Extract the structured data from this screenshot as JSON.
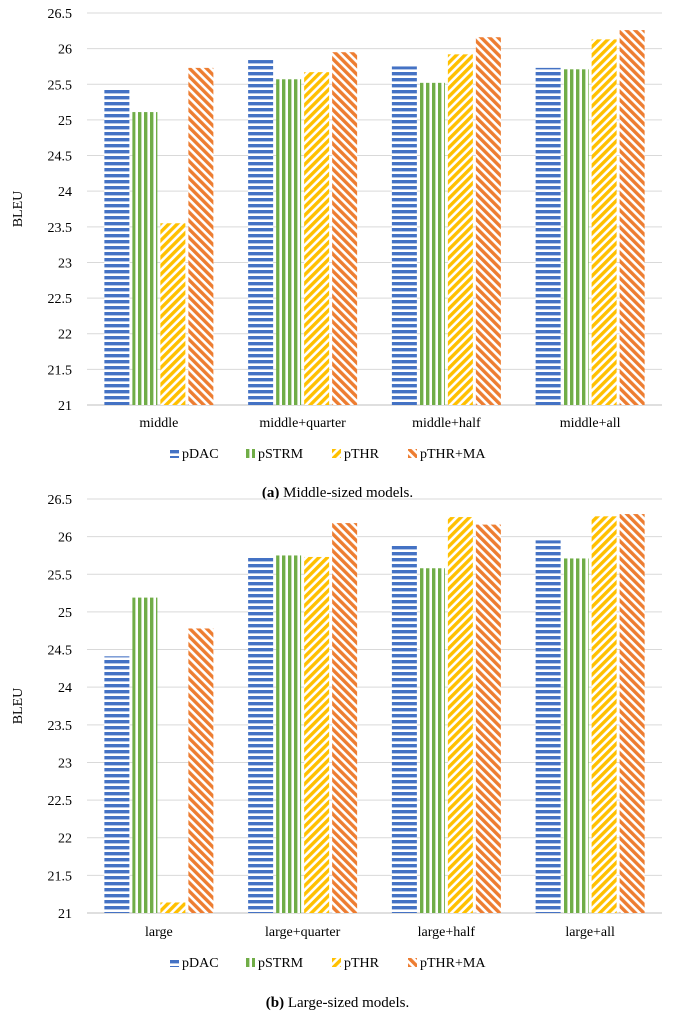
{
  "chart_data": [
    {
      "type": "bar",
      "caption_label": "(a)",
      "caption_text": "Middle-sized models.",
      "ylabel": "BLEU",
      "xlabel": "",
      "ylim": [
        21,
        26.5
      ],
      "yticks": [
        "21",
        "21.5",
        "22",
        "22.5",
        "23",
        "23.5",
        "24",
        "24.5",
        "25",
        "25.5",
        "26",
        "26.5"
      ],
      "grid": true,
      "legend_position": "bottom",
      "categories": [
        "middle",
        "middle+quarter",
        "middle+half",
        "middle+all"
      ],
      "series": [
        {
          "name": "pDAC",
          "pattern": "horizontal",
          "color": "#4472C4",
          "values": [
            25.43,
            25.84,
            25.75,
            25.73
          ]
        },
        {
          "name": "pSTRM",
          "pattern": "vertical",
          "color": "#70AD47",
          "values": [
            25.11,
            25.57,
            25.52,
            25.71
          ]
        },
        {
          "name": "pTHR",
          "pattern": "diagonal-down",
          "color": "#FFC000",
          "values": [
            23.55,
            25.67,
            25.92,
            26.13
          ]
        },
        {
          "name": "pTHR+MA",
          "pattern": "diagonal-up",
          "color": "#ED7D31",
          "values": [
            25.73,
            25.95,
            26.16,
            26.26
          ]
        }
      ]
    },
    {
      "type": "bar",
      "caption_label": "(b)",
      "caption_text": "Large-sized models.",
      "ylabel": "BLEU",
      "xlabel": "",
      "ylim": [
        21,
        26.5
      ],
      "yticks": [
        "21",
        "21.5",
        "22",
        "22.5",
        "23",
        "23.5",
        "24",
        "24.5",
        "25",
        "25.5",
        "26",
        "26.5"
      ],
      "grid": true,
      "legend_position": "bottom",
      "categories": [
        "large",
        "large+quarter",
        "large+half",
        "large+all"
      ],
      "series": [
        {
          "name": "pDAC",
          "pattern": "horizontal",
          "color": "#4472C4",
          "values": [
            24.41,
            25.73,
            25.89,
            25.95
          ]
        },
        {
          "name": "pSTRM",
          "pattern": "vertical",
          "color": "#70AD47",
          "values": [
            25.19,
            25.75,
            25.58,
            25.71
          ]
        },
        {
          "name": "pTHR",
          "pattern": "diagonal-down",
          "color": "#FFC000",
          "values": [
            21.14,
            25.73,
            26.26,
            26.27
          ]
        },
        {
          "name": "pTHR+MA",
          "pattern": "diagonal-up",
          "color": "#ED7D31",
          "values": [
            24.78,
            26.18,
            26.16,
            26.3
          ]
        }
      ]
    }
  ]
}
